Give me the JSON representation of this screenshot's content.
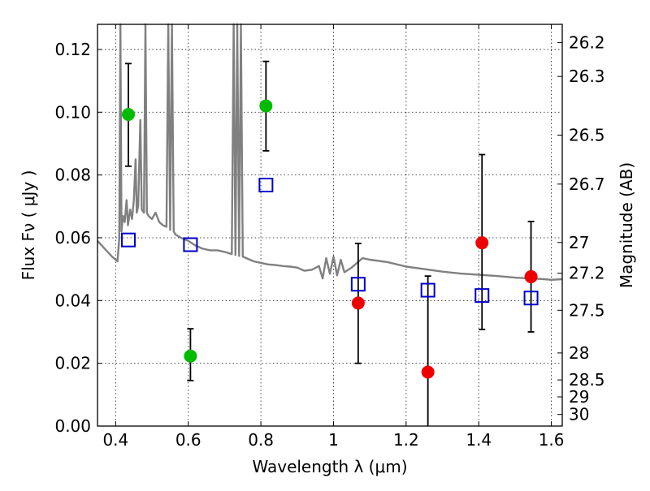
{
  "chart_data": {
    "type": "scatter",
    "xlabel": "Wavelength  λ (μm)",
    "ylabel": "Flux  Fν  ( μJy )",
    "ylabel_right": "Magnitude (AB)",
    "xlim": [
      0.35,
      1.63
    ],
    "ylim": [
      0.0,
      0.128
    ],
    "x_ticks": [
      0.4,
      0.6,
      0.8,
      1.0,
      1.2,
      1.4,
      1.6
    ],
    "x_tick_labels": [
      "0.4",
      "0.6",
      "0.8",
      "1",
      "1.2",
      "1.4",
      "1.6"
    ],
    "y_ticks": [
      0.0,
      0.02,
      0.04,
      0.06,
      0.08,
      0.1,
      0.12
    ],
    "y_tick_labels": [
      "0.00",
      "0.02",
      "0.04",
      "0.06",
      "0.08",
      "0.10",
      "0.12"
    ],
    "right_ticks": [
      {
        "label": "26.2",
        "flux": 0.1222
      },
      {
        "label": "26.3",
        "flux": 0.1114
      },
      {
        "label": "26.5",
        "flux": 0.0927
      },
      {
        "label": "26.7",
        "flux": 0.0771
      },
      {
        "label": "27",
        "flux": 0.0585
      },
      {
        "label": "27.2",
        "flux": 0.0487
      },
      {
        "label": "27.5",
        "flux": 0.0369
      },
      {
        "label": "28",
        "flux": 0.0233
      },
      {
        "label": "28.5",
        "flux": 0.0147
      },
      {
        "label": "29",
        "flux": 0.0093
      },
      {
        "label": "30",
        "flux": 0.0037
      }
    ],
    "grid": true,
    "series": [
      {
        "color": "#00bb00",
        "marker": "circle",
        "points": [
          {
            "x": 0.435,
            "y": 0.0993,
            "yerr_low": 0.0828,
            "yerr_high": 0.1155
          },
          {
            "x": 0.606,
            "y": 0.0223,
            "yerr_low": 0.0145,
            "yerr_high": 0.031
          },
          {
            "x": 0.814,
            "y": 0.102,
            "yerr_low": 0.0877,
            "yerr_high": 0.1162
          }
        ]
      },
      {
        "color": "#ee0000",
        "marker": "circle",
        "points": [
          {
            "x": 1.068,
            "y": 0.0392,
            "yerr_low": 0.02,
            "yerr_high": 0.0582
          },
          {
            "x": 1.26,
            "y": 0.0172,
            "yerr_low": 0.0,
            "yerr_high": 0.0478
          },
          {
            "x": 1.409,
            "y": 0.0584,
            "yerr_low": 0.0308,
            "yerr_high": 0.0865
          },
          {
            "x": 1.544,
            "y": 0.0476,
            "yerr_low": 0.03,
            "yerr_high": 0.0652
          }
        ]
      },
      {
        "color": "#0000cc",
        "marker": "square-open",
        "points": [
          {
            "x": 0.435,
            "y": 0.0593
          },
          {
            "x": 0.606,
            "y": 0.0578
          },
          {
            "x": 0.814,
            "y": 0.0768
          },
          {
            "x": 1.068,
            "y": 0.0452
          },
          {
            "x": 1.26,
            "y": 0.0433
          },
          {
            "x": 1.409,
            "y": 0.0416
          },
          {
            "x": 1.544,
            "y": 0.0408
          }
        ]
      }
    ],
    "model_spectrum": {
      "color": "#808080",
      "points": [
        [
          0.35,
          0.059
        ],
        [
          0.37,
          0.0565
        ],
        [
          0.39,
          0.054
        ],
        [
          0.405,
          0.0525
        ],
        [
          0.41,
          0.06
        ],
        [
          0.413,
          0.128
        ],
        [
          0.416,
          0.062
        ],
        [
          0.42,
          0.067
        ],
        [
          0.425,
          0.065
        ],
        [
          0.43,
          0.072
        ],
        [
          0.434,
          0.064
        ],
        [
          0.44,
          0.069
        ],
        [
          0.445,
          0.066
        ],
        [
          0.45,
          0.072
        ],
        [
          0.455,
          0.085
        ],
        [
          0.458,
          0.068
        ],
        [
          0.462,
          0.07
        ],
        [
          0.468,
          0.0975
        ],
        [
          0.472,
          0.069
        ],
        [
          0.478,
          0.068
        ],
        [
          0.482,
          0.128
        ],
        [
          0.486,
          0.068
        ],
        [
          0.49,
          0.067
        ],
        [
          0.5,
          0.066
        ],
        [
          0.51,
          0.068
        ],
        [
          0.52,
          0.065
        ],
        [
          0.53,
          0.064
        ],
        [
          0.54,
          0.0635
        ],
        [
          0.545,
          0.128
        ],
        [
          0.55,
          0.0625
        ],
        [
          0.555,
          0.128
        ],
        [
          0.56,
          0.062
        ],
        [
          0.565,
          0.061
        ],
        [
          0.58,
          0.06
        ],
        [
          0.6,
          0.059
        ],
        [
          0.62,
          0.0575
        ],
        [
          0.64,
          0.0565
        ],
        [
          0.66,
          0.056
        ],
        [
          0.68,
          0.056
        ],
        [
          0.7,
          0.0555
        ],
        [
          0.72,
          0.0548
        ],
        [
          0.725,
          0.128
        ],
        [
          0.73,
          0.0545
        ],
        [
          0.735,
          0.128
        ],
        [
          0.74,
          0.0542
        ],
        [
          0.745,
          0.128
        ],
        [
          0.75,
          0.054
        ],
        [
          0.76,
          0.0535
        ],
        [
          0.78,
          0.0525
        ],
        [
          0.8,
          0.052
        ],
        [
          0.82,
          0.0515
        ],
        [
          0.84,
          0.0513
        ],
        [
          0.86,
          0.051
        ],
        [
          0.88,
          0.0508
        ],
        [
          0.9,
          0.0505
        ],
        [
          0.92,
          0.0495
        ],
        [
          0.94,
          0.0498
        ],
        [
          0.96,
          0.051
        ],
        [
          0.97,
          0.047
        ],
        [
          0.98,
          0.0535
        ],
        [
          0.99,
          0.0485
        ],
        [
          1.0,
          0.054
        ],
        [
          1.01,
          0.048
        ],
        [
          1.02,
          0.053
        ],
        [
          1.03,
          0.049
        ],
        [
          1.05,
          0.0505
        ],
        [
          1.08,
          0.0535
        ],
        [
          1.1,
          0.053
        ],
        [
          1.15,
          0.0522
        ],
        [
          1.2,
          0.0508
        ],
        [
          1.25,
          0.05
        ],
        [
          1.3,
          0.0492
        ],
        [
          1.35,
          0.0486
        ],
        [
          1.4,
          0.0482
        ],
        [
          1.45,
          0.0478
        ],
        [
          1.5,
          0.0473
        ],
        [
          1.55,
          0.047
        ],
        [
          1.58,
          0.0468
        ],
        [
          1.6,
          0.0466
        ],
        [
          1.63,
          0.0468
        ]
      ]
    }
  }
}
